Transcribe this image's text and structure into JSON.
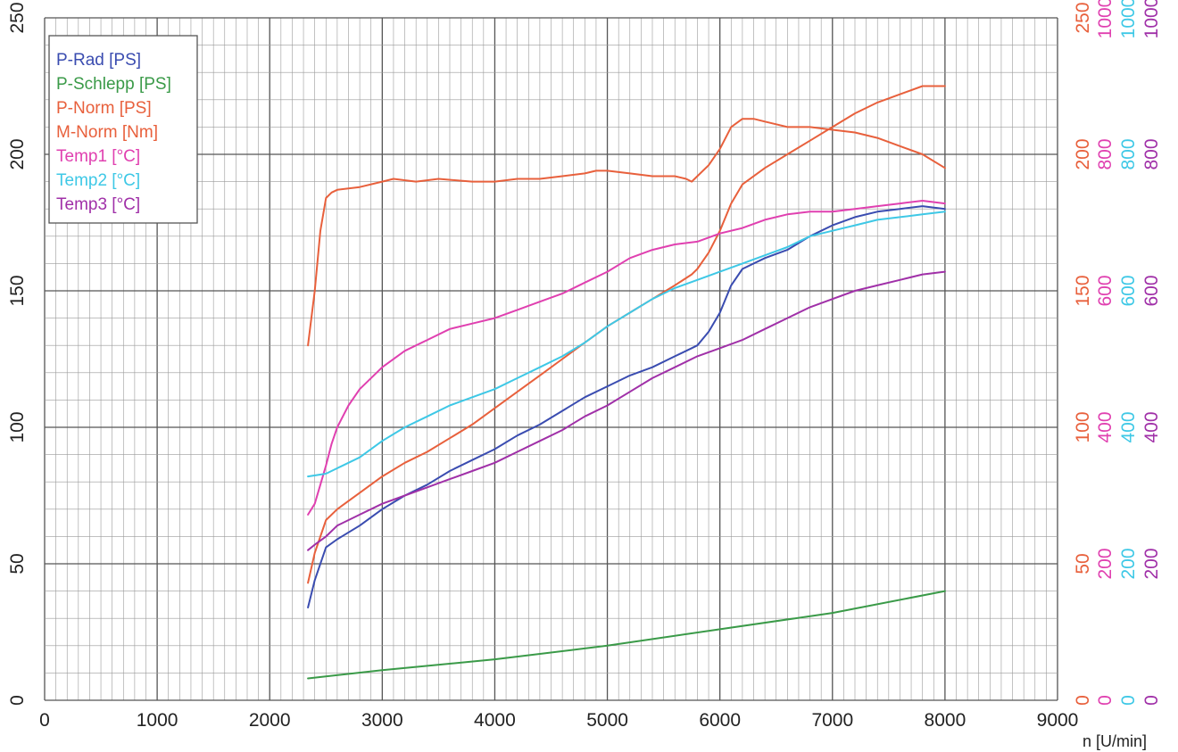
{
  "colors": {
    "background": "#ffffff",
    "grid_major": "#555555",
    "grid_minor": "#9a9a9a"
  },
  "chart_data": {
    "type": "line",
    "title": "",
    "xlabel": "n [U/min]",
    "ylabel": "",
    "xlim": [
      0,
      9000
    ],
    "ylim": [
      0,
      250
    ],
    "grid": true,
    "legend_position": "top-left",
    "x_ticks": [
      "0",
      "1000",
      "2000",
      "3000",
      "4000",
      "5000",
      "6000",
      "7000",
      "8000",
      "9000"
    ],
    "y_ticks": [
      "0",
      "50",
      "100",
      "150",
      "200",
      "250"
    ],
    "right_axes": [
      {
        "color": "#e8603c",
        "ticks": [
          "0",
          "50",
          "100",
          "150",
          "200",
          "250"
        ]
      },
      {
        "color": "#e040b0",
        "ticks": [
          "0",
          "200",
          "400",
          "600",
          "800",
          "1000"
        ]
      },
      {
        "color": "#3ec8e6",
        "ticks": [
          "0",
          "200",
          "400",
          "600",
          "800",
          "1000"
        ]
      },
      {
        "color": "#a030a8",
        "ticks": [
          "0",
          "200",
          "400",
          "600",
          "800",
          "1000"
        ]
      }
    ],
    "series": [
      {
        "name": "P-Rad [PS]",
        "color": "#3a4cb0",
        "x": [
          2340,
          2400,
          2500,
          2600,
          2800,
          3000,
          3200,
          3400,
          3600,
          3800,
          4000,
          4200,
          4400,
          4600,
          4800,
          5000,
          5200,
          5400,
          5600,
          5750,
          5800,
          5900,
          6000,
          6100,
          6200,
          6400,
          6600,
          6800,
          7000,
          7200,
          7400,
          7600,
          7800,
          8000
        ],
        "y": [
          34,
          44,
          56,
          59,
          64,
          70,
          75,
          79,
          84,
          88,
          92,
          97,
          101,
          106,
          111,
          115,
          119,
          122,
          126,
          129,
          130,
          135,
          142,
          152,
          158,
          162,
          165,
          170,
          174,
          177,
          179,
          180,
          181,
          180
        ]
      },
      {
        "name": "P-Schlepp [PS]",
        "color": "#3a9a48",
        "x": [
          2340,
          3000,
          4000,
          5000,
          6000,
          7000,
          8000
        ],
        "y": [
          8,
          11,
          15,
          20,
          26,
          32,
          40
        ]
      },
      {
        "name": "P-Norm [PS]",
        "color": "#e8603c",
        "x": [
          2340,
          2400,
          2500,
          2600,
          2800,
          3000,
          3200,
          3400,
          3600,
          3800,
          4000,
          4200,
          4400,
          4600,
          4800,
          5000,
          5200,
          5400,
          5600,
          5750,
          5800,
          5900,
          6000,
          6100,
          6200,
          6400,
          6600,
          6800,
          7000,
          7200,
          7400,
          7600,
          7800,
          8000
        ],
        "y": [
          43,
          54,
          66,
          70,
          76,
          82,
          87,
          91,
          96,
          101,
          107,
          113,
          119,
          125,
          131,
          137,
          142,
          147,
          152,
          156,
          158,
          164,
          172,
          182,
          189,
          195,
          200,
          205,
          210,
          215,
          219,
          222,
          225,
          225
        ]
      },
      {
        "name": "M-Norm [Nm]",
        "color": "#e8603c",
        "x": [
          2340,
          2400,
          2450,
          2500,
          2550,
          2600,
          2800,
          3000,
          3100,
          3300,
          3500,
          3800,
          4000,
          4200,
          4400,
          4600,
          4800,
          4900,
          5000,
          5200,
          5400,
          5600,
          5700,
          5750,
          5800,
          5900,
          6000,
          6100,
          6200,
          6300,
          6400,
          6500,
          6600,
          6800,
          7000,
          7200,
          7400,
          7600,
          7800,
          8000
        ],
        "y": [
          130,
          150,
          172,
          184,
          186,
          187,
          188,
          190,
          191,
          190,
          191,
          190,
          190,
          191,
          191,
          192,
          193,
          194,
          194,
          193,
          192,
          192,
          191,
          190,
          192,
          196,
          202,
          210,
          213,
          213,
          212,
          211,
          210,
          210,
          209,
          208,
          206,
          203,
          200,
          195
        ]
      },
      {
        "name": "Temp1 [°C]",
        "color": "#e040b0",
        "x": [
          2340,
          2400,
          2450,
          2500,
          2550,
          2600,
          2700,
          2800,
          3000,
          3200,
          3400,
          3600,
          3800,
          4000,
          4200,
          4400,
          4600,
          4800,
          5000,
          5200,
          5400,
          5600,
          5800,
          6000,
          6200,
          6400,
          6600,
          6800,
          7000,
          7200,
          7400,
          7600,
          7800,
          8000
        ],
        "y": [
          68,
          72,
          79,
          86,
          94,
          100,
          108,
          114,
          122,
          128,
          132,
          136,
          138,
          140,
          143,
          146,
          149,
          153,
          157,
          162,
          165,
          167,
          168,
          171,
          173,
          176,
          178,
          179,
          179,
          180,
          181,
          182,
          183,
          182
        ]
      },
      {
        "name": "Temp2 [°C]",
        "color": "#3ec8e6",
        "x": [
          2340,
          2500,
          2600,
          2800,
          3000,
          3200,
          3400,
          3600,
          3800,
          4000,
          4200,
          4400,
          4600,
          4800,
          5000,
          5200,
          5400,
          5600,
          5800,
          6000,
          6200,
          6400,
          6600,
          6800,
          7000,
          7200,
          7400,
          7600,
          7800,
          8000
        ],
        "y": [
          82,
          83,
          85,
          89,
          95,
          100,
          104,
          108,
          111,
          114,
          118,
          122,
          126,
          131,
          137,
          142,
          147,
          151,
          154,
          157,
          160,
          163,
          166,
          170,
          172,
          174,
          176,
          177,
          178,
          179
        ]
      },
      {
        "name": "Temp3 [°C]",
        "color": "#a030a8",
        "x": [
          2340,
          2400,
          2500,
          2600,
          2800,
          3000,
          3200,
          3400,
          3600,
          3800,
          4000,
          4200,
          4400,
          4600,
          4800,
          5000,
          5200,
          5400,
          5600,
          5800,
          6000,
          6200,
          6400,
          6600,
          6800,
          7000,
          7200,
          7400,
          7600,
          7800,
          8000
        ],
        "y": [
          55,
          57,
          60,
          64,
          68,
          72,
          75,
          78,
          81,
          84,
          87,
          91,
          95,
          99,
          104,
          108,
          113,
          118,
          122,
          126,
          129,
          132,
          136,
          140,
          144,
          147,
          150,
          152,
          154,
          156,
          157
        ]
      }
    ]
  }
}
